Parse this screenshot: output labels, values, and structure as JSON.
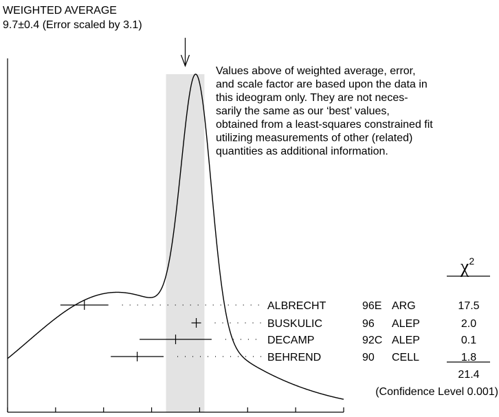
{
  "chart_data": {
    "type": "ideogram",
    "title": "WEIGHTED AVERAGE",
    "subtitle": "9.7±0.4 (Error scaled by 3.1)",
    "weighted_average": 9.7,
    "weighted_error": 0.4,
    "scale_factor": 3.1,
    "xlim": [
      6,
      13
    ],
    "x_ticks": [
      "6",
      "7",
      "8",
      "9",
      "10",
      "11",
      "12",
      "13"
    ],
    "note": "Values above of weighted average, error, and scale factor are based upon the data in this ideogram only.  They are not necessarily the same as our ‘best’ values, obtained from a least-squares constrained fit utilizing measurements of other (related) quantities as additional information.",
    "note_lines": [
      "Values above of weighted average, error,",
      "and scale factor are based upon the data in",
      "this ideogram only.  They are not neces-",
      "sarily the same as our ‘best’ values,",
      "obtained from a least-squares constrained fit",
      "utilizing measurements of other (related)",
      "quantities as additional information."
    ],
    "chi_header": "χ",
    "chi_exp": "2",
    "measurements": [
      {
        "author": "ALBRECHT",
        "year": "96E",
        "tech": "ARG",
        "value": 7.6,
        "error": 0.5,
        "chi2": "17.5"
      },
      {
        "author": "BUSKULIC",
        "year": "96",
        "tech": "ALEP",
        "value": 9.93,
        "error": 0.1,
        "chi2": "2.0"
      },
      {
        "author": "DECAMP",
        "year": "92C",
        "tech": "ALEP",
        "value": 9.5,
        "error": 0.75,
        "chi2": "0.1"
      },
      {
        "author": "BEHREND",
        "year": "90",
        "tech": "CELL",
        "value": 8.7,
        "error": 0.55,
        "chi2": "1.8"
      }
    ],
    "chi2_total": "21.4",
    "confidence_text": "(Confidence Level  0.001)"
  }
}
